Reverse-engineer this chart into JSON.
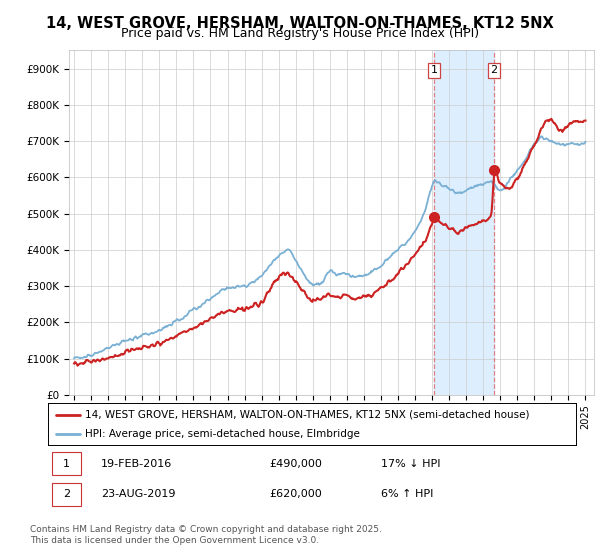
{
  "title": "14, WEST GROVE, HERSHAM, WALTON-ON-THAMES, KT12 5NX",
  "subtitle": "Price paid vs. HM Land Registry's House Price Index (HPI)",
  "legend_line1": "14, WEST GROVE, HERSHAM, WALTON-ON-THAMES, KT12 5NX (semi-detached house)",
  "legend_line2": "HPI: Average price, semi-detached house, Elmbridge",
  "footer": "Contains HM Land Registry data © Crown copyright and database right 2025.\nThis data is licensed under the Open Government Licence v3.0.",
  "sale1_date": "19-FEB-2016",
  "sale1_price": "£490,000",
  "sale1_hpi": "17% ↓ HPI",
  "sale2_date": "23-AUG-2019",
  "sale2_price": "£620,000",
  "sale2_hpi": "6% ↑ HPI",
  "sale1_x": 2016.12,
  "sale1_y": 490000,
  "sale2_x": 2019.64,
  "sale2_y": 620000,
  "shade_xmin": 2016.12,
  "shade_xmax": 2019.64,
  "red_color": "#cc2222",
  "blue_color": "#7ab0d4",
  "shade_color": "#ddeeff",
  "dashed_color": "#e08080",
  "ylim_min": 0,
  "ylim_max": 950000,
  "yticks": [
    0,
    100000,
    200000,
    300000,
    400000,
    500000,
    600000,
    700000,
    800000,
    900000
  ],
  "ytick_labels": [
    "£0",
    "£100K",
    "£200K",
    "£300K",
    "£400K",
    "£500K",
    "£600K",
    "£700K",
    "£800K",
    "£900K"
  ],
  "xlim_min": 1994.7,
  "xlim_max": 2025.5,
  "background_color": "#ffffff",
  "grid_color": "#cccccc"
}
